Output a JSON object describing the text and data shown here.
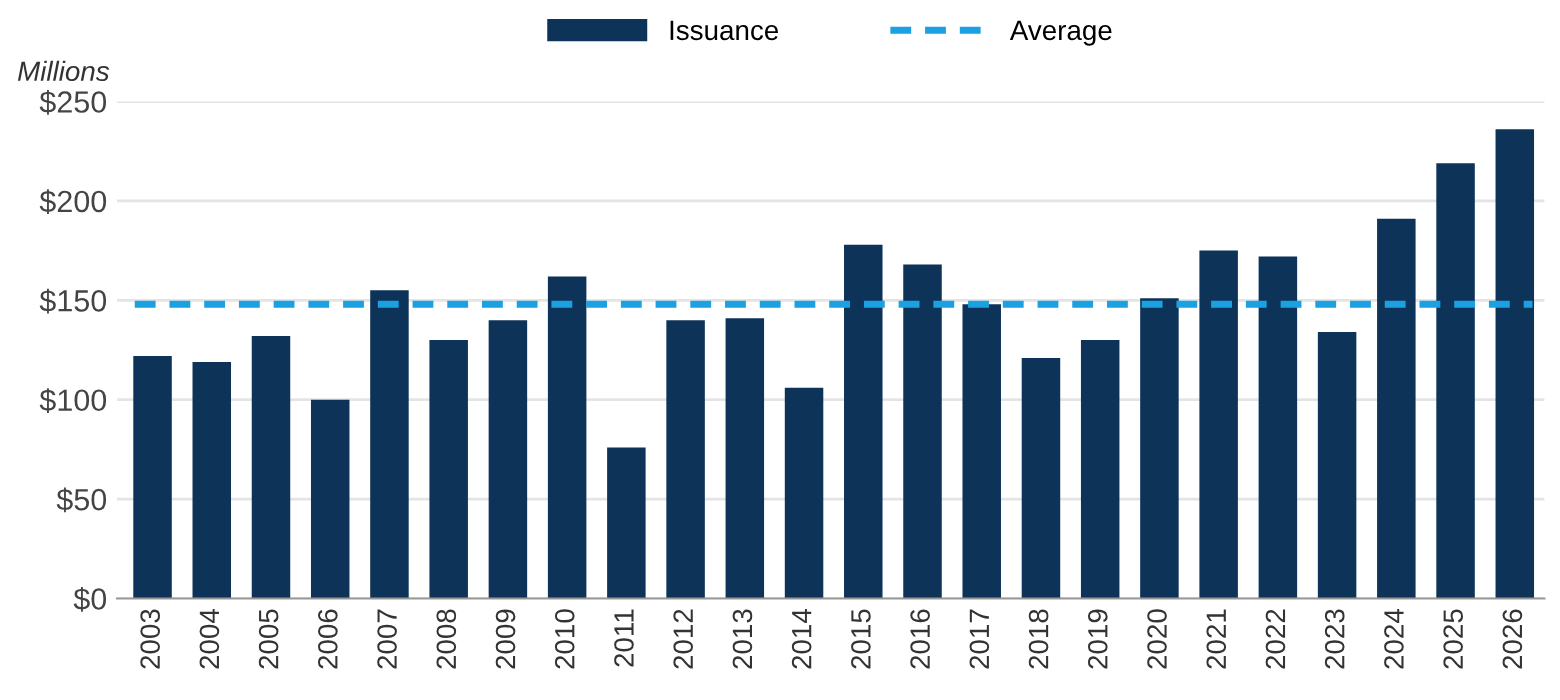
{
  "chart_data": {
    "type": "bar",
    "categories": [
      "2003",
      "2004",
      "2005",
      "2006",
      "2007",
      "2008",
      "2009",
      "2010",
      "2011",
      "2012",
      "2013",
      "2014",
      "2015",
      "2016",
      "2017",
      "2018",
      "2019",
      "2020",
      "2021",
      "2022",
      "2023",
      "2024",
      "2025",
      "2026"
    ],
    "series": [
      {
        "name": "Issuance",
        "color": "#0d3358",
        "values": [
          122,
          119,
          132,
          100,
          155,
          130,
          140,
          162,
          76,
          140,
          141,
          106,
          178,
          168,
          148,
          121,
          130,
          151,
          175,
          172,
          134,
          191,
          219,
          236
        ]
      }
    ],
    "ylabel": "Millions",
    "ylim": [
      0,
      250
    ],
    "yticks": [
      {
        "value": 0,
        "label": "$0"
      },
      {
        "value": 50,
        "label": "$50"
      },
      {
        "value": 100,
        "label": "$100"
      },
      {
        "value": 150,
        "label": "$150"
      },
      {
        "value": 200,
        "label": "$200"
      },
      {
        "value": 250,
        "label": "$250"
      }
    ],
    "ref_lines": [
      {
        "axis": "y",
        "value": 148,
        "label": "Average",
        "color": "#1ba1e2",
        "line_style": "dashed"
      }
    ],
    "grid": "y",
    "legend": "top"
  }
}
